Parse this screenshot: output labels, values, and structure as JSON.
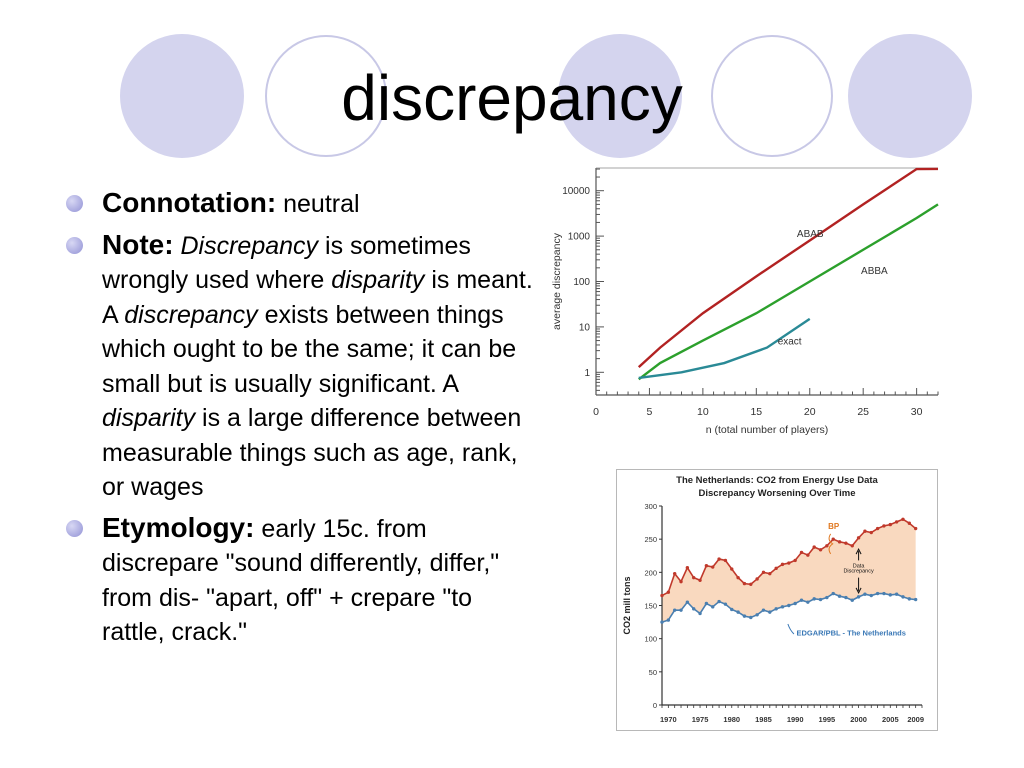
{
  "slide": {
    "title": "discrepancy",
    "colors": {
      "circle_fill": "#d4d4ee",
      "circle_stroke": "#c8c8e6",
      "bullet": "#a6a6de"
    }
  },
  "bullets": {
    "connotation": {
      "label": "Connotation:",
      "text": " neutral"
    },
    "note": {
      "label": "Note:",
      "p1": " ",
      "i1": "Discrepancy",
      "p2": " is sometimes wrongly used where ",
      "i2": "disparity",
      "p3": " is meant. A ",
      "i3": "discrepancy",
      "p4": " exists between things which ought to be the same; it can be small but is usually significant. A ",
      "i4": "disparity",
      "p5": " is a large difference between measurable things such as age, rank, or wages"
    },
    "etymology": {
      "label": "Etymology:",
      "small": " early 15c. from",
      "text": " discrepare \"sound differently, differ,\" from dis- \"apart, off\" + crepare \"to rattle, crack.\""
    }
  },
  "chart_data": [
    {
      "type": "line",
      "title": "",
      "xlabel": "n (total number of players)",
      "ylabel": "average discrepancy",
      "xlim": [
        0,
        32
      ],
      "ylim_log10": [
        -0.5,
        4.5
      ],
      "y_scale": "log",
      "xticks": [
        "0",
        "5",
        "10",
        "15",
        "20",
        "25",
        "30"
      ],
      "yticks": [
        "1",
        "10",
        "100",
        "1000",
        "10000"
      ],
      "series": [
        {
          "name": "ABAB",
          "color": "#b22222",
          "x": [
            4,
            6,
            10,
            15,
            20,
            25,
            30,
            32
          ],
          "y": [
            1.3,
            3.5,
            20,
            130,
            800,
            5000,
            30000,
            60000
          ]
        },
        {
          "name": "ABBA",
          "color": "#2ca02c",
          "x": [
            4,
            6,
            10,
            15,
            20,
            25,
            30,
            32
          ],
          "y": [
            0.7,
            1.6,
            5,
            20,
            100,
            500,
            2500,
            5000
          ]
        },
        {
          "name": "exact",
          "color": "#2a8a96",
          "x": [
            4,
            8,
            12,
            16,
            20
          ],
          "y": [
            0.75,
            1.0,
            1.6,
            3.5,
            15
          ]
        }
      ]
    },
    {
      "type": "line",
      "title": "The Netherlands: CO2 from Energy Use Data",
      "subtitle": "Discrepancy Worsening Over Time",
      "xlabel": "",
      "ylabel": "CO2 mill tons",
      "xlim": [
        1969,
        2010
      ],
      "ylim": [
        0,
        300
      ],
      "xticks": [
        "1970",
        "1975",
        "1980",
        "1985",
        "1990",
        "1995",
        "2000",
        "2005",
        "2009"
      ],
      "yticks": [
        "0",
        "50",
        "100",
        "150",
        "200",
        "250",
        "300"
      ],
      "annotation": "Data\nDiscrepancy",
      "series": [
        {
          "name": "BP",
          "color": "#c0392b",
          "x": [
            1969,
            1970,
            1971,
            1972,
            1973,
            1974,
            1975,
            1976,
            1977,
            1978,
            1979,
            1980,
            1981,
            1982,
            1983,
            1984,
            1985,
            1986,
            1987,
            1988,
            1989,
            1990,
            1991,
            1992,
            1993,
            1994,
            1995,
            1996,
            1997,
            1998,
            1999,
            2000,
            2001,
            2002,
            2003,
            2004,
            2005,
            2006,
            2007,
            2008,
            2009
          ],
          "y": [
            165,
            170,
            198,
            186,
            207,
            192,
            188,
            210,
            208,
            220,
            218,
            205,
            192,
            183,
            182,
            190,
            200,
            198,
            206,
            212,
            214,
            218,
            230,
            226,
            238,
            234,
            240,
            250,
            246,
            244,
            240,
            252,
            262,
            260,
            266,
            270,
            272,
            276,
            280,
            274,
            266
          ]
        },
        {
          "name": "EDGAR/PBL - The Netherlands",
          "color": "#4a7fb0",
          "x": [
            1969,
            1970,
            1971,
            1972,
            1973,
            1974,
            1975,
            1976,
            1977,
            1978,
            1979,
            1980,
            1981,
            1982,
            1983,
            1984,
            1985,
            1986,
            1987,
            1988,
            1989,
            1990,
            1991,
            1992,
            1993,
            1994,
            1995,
            1996,
            1997,
            1998,
            1999,
            2000,
            2001,
            2002,
            2003,
            2004,
            2005,
            2006,
            2007,
            2008,
            2009
          ],
          "y": [
            125,
            128,
            143,
            143,
            155,
            145,
            138,
            153,
            148,
            156,
            152,
            144,
            140,
            134,
            132,
            136,
            143,
            140,
            145,
            148,
            150,
            153,
            158,
            155,
            160,
            159,
            162,
            168,
            164,
            162,
            158,
            163,
            167,
            165,
            168,
            168,
            166,
            167,
            163,
            160,
            159
          ]
        }
      ]
    }
  ]
}
